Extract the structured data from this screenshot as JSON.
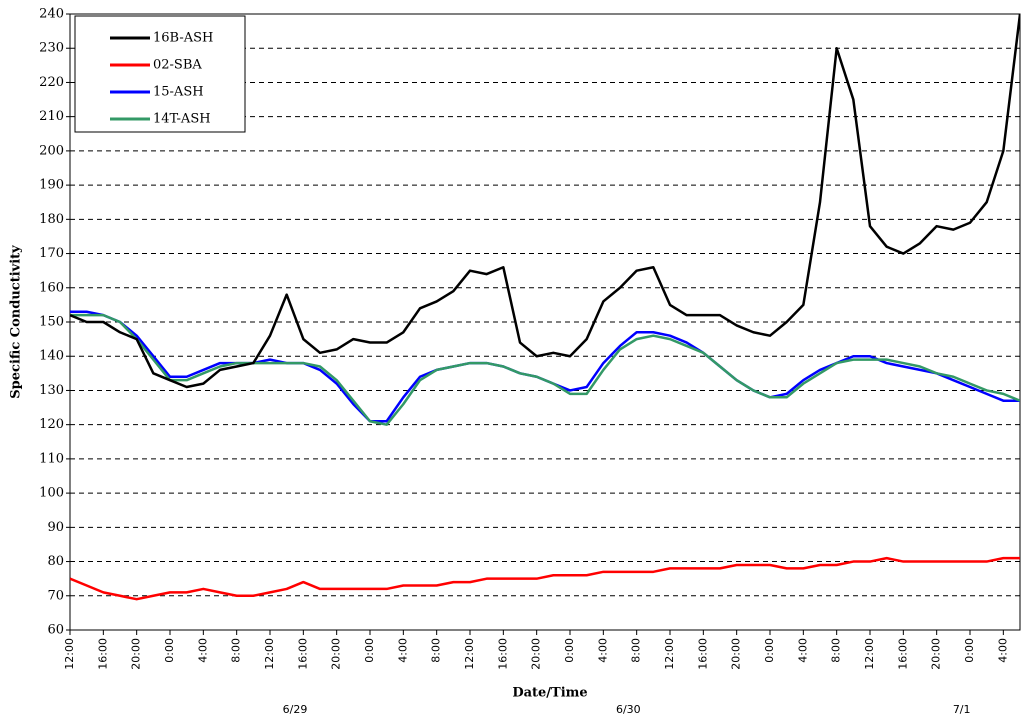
{
  "chart_data": {
    "type": "line",
    "xlabel": "Date/Time",
    "ylabel": "Specific Conductivity",
    "x": [
      0,
      2,
      4,
      6,
      8,
      10,
      12,
      14,
      16,
      18,
      20,
      22,
      24,
      26,
      28,
      30,
      32,
      34,
      36,
      38,
      40,
      42,
      44,
      46,
      48,
      50,
      52,
      54,
      56,
      58,
      60,
      62,
      64,
      66,
      68,
      70,
      72,
      74,
      76,
      78,
      80,
      82,
      84,
      86,
      88,
      90,
      92,
      94,
      96,
      98,
      100,
      102,
      104,
      106,
      108,
      110,
      112,
      114
    ],
    "series": [
      {
        "name": "16B-ASH",
        "color": "#000000",
        "values": [
          152,
          150,
          150,
          147,
          145,
          135,
          133,
          131,
          132,
          136,
          137,
          138,
          146,
          158,
          145,
          141,
          142,
          145,
          144,
          144,
          147,
          154,
          156,
          159,
          165,
          164,
          166,
          144,
          140,
          141,
          140,
          145,
          156,
          160,
          165,
          166,
          155,
          152,
          152,
          152,
          149,
          147,
          146,
          150,
          155,
          185,
          230,
          215,
          178,
          172,
          170,
          173,
          178,
          177,
          179,
          185,
          200,
          240
        ]
      },
      {
        "name": "02-SBA",
        "color": "#ff0000",
        "values": [
          75,
          73,
          71,
          70,
          69,
          70,
          71,
          71,
          72,
          71,
          70,
          70,
          71,
          72,
          74,
          72,
          72,
          72,
          72,
          72,
          73,
          73,
          73,
          74,
          74,
          75,
          75,
          75,
          75,
          76,
          76,
          76,
          77,
          77,
          77,
          77,
          78,
          78,
          78,
          78,
          79,
          79,
          79,
          78,
          78,
          79,
          79,
          80,
          80,
          81,
          80,
          80,
          80,
          80,
          80,
          80,
          81,
          81
        ]
      },
      {
        "name": "15-ASH",
        "color": "#0000ff",
        "values": [
          153,
          153,
          152,
          150,
          146,
          140,
          134,
          134,
          136,
          138,
          138,
          138,
          139,
          138,
          138,
          136,
          132,
          126,
          121,
          121,
          128,
          134,
          136,
          137,
          138,
          138,
          137,
          135,
          134,
          132,
          130,
          131,
          138,
          143,
          147,
          147,
          146,
          144,
          141,
          137,
          133,
          130,
          128,
          129,
          133,
          136,
          138,
          140,
          140,
          138,
          137,
          136,
          135,
          133,
          131,
          129,
          127,
          127
        ]
      },
      {
        "name": "14T-ASH",
        "color": "#339966",
        "values": [
          152,
          152,
          152,
          150,
          145,
          139,
          133,
          133,
          135,
          137,
          138,
          138,
          138,
          138,
          138,
          137,
          133,
          127,
          121,
          120,
          126,
          133,
          136,
          137,
          138,
          138,
          137,
          135,
          134,
          132,
          129,
          129,
          136,
          142,
          145,
          146,
          145,
          143,
          141,
          137,
          133,
          130,
          128,
          128,
          132,
          135,
          138,
          139,
          139,
          139,
          138,
          137,
          135,
          134,
          132,
          130,
          129,
          127
        ]
      }
    ],
    "xlim": [
      0,
      114
    ],
    "xticks": [
      {
        "value": 0,
        "label": "12:00"
      },
      {
        "value": 4,
        "label": "16:00"
      },
      {
        "value": 8,
        "label": "20:00"
      },
      {
        "value": 12,
        "label": "0:00"
      },
      {
        "value": 16,
        "label": "4:00"
      },
      {
        "value": 20,
        "label": "8:00"
      },
      {
        "value": 24,
        "label": "12:00"
      },
      {
        "value": 28,
        "label": "16:00"
      },
      {
        "value": 32,
        "label": "20:00"
      },
      {
        "value": 36,
        "label": "0:00"
      },
      {
        "value": 40,
        "label": "4:00"
      },
      {
        "value": 44,
        "label": "8:00"
      },
      {
        "value": 48,
        "label": "12:00"
      },
      {
        "value": 52,
        "label": "16:00"
      },
      {
        "value": 56,
        "label": "20:00"
      },
      {
        "value": 60,
        "label": "0:00"
      },
      {
        "value": 64,
        "label": "4:00"
      },
      {
        "value": 68,
        "label": "8:00"
      },
      {
        "value": 72,
        "label": "12:00"
      },
      {
        "value": 76,
        "label": "16:00"
      },
      {
        "value": 80,
        "label": "20:00"
      },
      {
        "value": 84,
        "label": "0:00"
      },
      {
        "value": 88,
        "label": "4:00"
      },
      {
        "value": 92,
        "label": "8:00"
      },
      {
        "value": 96,
        "label": "12:00"
      },
      {
        "value": 100,
        "label": "16:00"
      },
      {
        "value": 104,
        "label": "20:00"
      },
      {
        "value": 108,
        "label": "0:00"
      },
      {
        "value": 112,
        "label": "4:00"
      }
    ],
    "xticks2": [
      {
        "value": 27,
        "label": "6/29"
      },
      {
        "value": 67,
        "label": "6/30"
      },
      {
        "value": 107,
        "label": "7/1"
      }
    ],
    "ylim": [
      60,
      240
    ],
    "yticks": [
      60,
      70,
      80,
      90,
      100,
      110,
      120,
      130,
      140,
      150,
      160,
      170,
      180,
      190,
      200,
      210,
      220,
      230,
      240
    ],
    "grid": true,
    "legend": "upper left"
  }
}
